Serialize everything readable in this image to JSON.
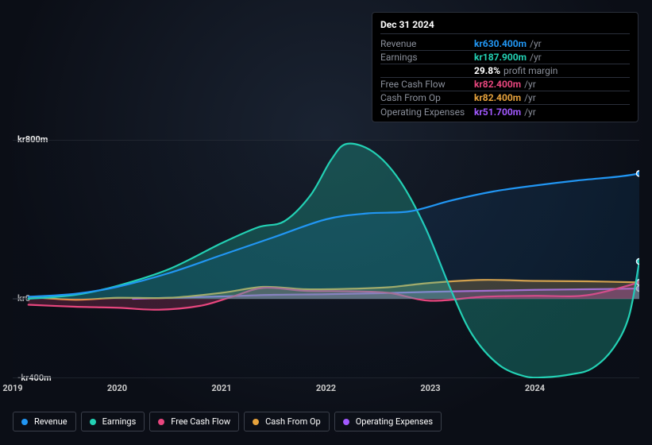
{
  "tooltip": {
    "date": "Dec 31 2024",
    "rows": [
      {
        "label": "Revenue",
        "value": "kr630.400m",
        "color": "#2196f3",
        "suffix": "/yr"
      },
      {
        "label": "Earnings",
        "value": "kr187.900m",
        "color": "#23d1b4",
        "suffix": "/yr"
      },
      {
        "label": "",
        "value": "29.8%",
        "color": "#ffffff",
        "suffix": "profit margin"
      },
      {
        "label": "Free Cash Flow",
        "value": "kr82.400m",
        "color": "#e8467e",
        "suffix": "/yr"
      },
      {
        "label": "Cash From Op",
        "value": "kr82.400m",
        "color": "#e6a23c",
        "suffix": "/yr"
      },
      {
        "label": "Operating Expenses",
        "value": "kr51.700m",
        "color": "#a259ff",
        "suffix": "/yr"
      }
    ]
  },
  "chart": {
    "type": "area",
    "background_color": "#0b0e16",
    "grid_color": "#30353f",
    "text_color": "#eeeeee",
    "ylim": [
      -400,
      800
    ],
    "y_ticks": [
      {
        "v": 800,
        "label": "kr800m"
      },
      {
        "v": 0,
        "label": "kr0"
      },
      {
        "v": -400,
        "label": "-kr400m"
      }
    ],
    "x_domain": [
      2019,
      2025
    ],
    "x_ticks": [
      {
        "v": 2019,
        "label": "2019"
      },
      {
        "v": 2020,
        "label": "2020"
      },
      {
        "v": 2021,
        "label": "2021"
      },
      {
        "v": 2022,
        "label": "2022"
      },
      {
        "v": 2023,
        "label": "2023"
      },
      {
        "v": 2024,
        "label": "2024"
      }
    ],
    "series": [
      {
        "name": "Operating Expenses",
        "color": "#a259ff",
        "fill_opacity": 0.25,
        "data": [
          [
            2020.15,
            0
          ],
          [
            2020.5,
            5
          ],
          [
            2021,
            12
          ],
          [
            2021.5,
            20
          ],
          [
            2022,
            23
          ],
          [
            2022.5,
            28
          ],
          [
            2023,
            35
          ],
          [
            2023.5,
            40
          ],
          [
            2024,
            45
          ],
          [
            2024.5,
            48
          ],
          [
            2025,
            51.7
          ]
        ]
      },
      {
        "name": "Cash From Op",
        "color": "#e6a23c",
        "fill_opacity": 0.25,
        "data": [
          [
            2019.15,
            10
          ],
          [
            2019.6,
            -5
          ],
          [
            2020,
            5
          ],
          [
            2020.5,
            5
          ],
          [
            2021,
            30
          ],
          [
            2021.4,
            60
          ],
          [
            2021.8,
            48
          ],
          [
            2022.2,
            50
          ],
          [
            2022.6,
            58
          ],
          [
            2023,
            80
          ],
          [
            2023.5,
            95
          ],
          [
            2024,
            90
          ],
          [
            2024.5,
            88
          ],
          [
            2025,
            82.4
          ]
        ]
      },
      {
        "name": "Free Cash Flow",
        "color": "#e8467e",
        "fill_opacity": 0.22,
        "data": [
          [
            2019.15,
            -30
          ],
          [
            2019.6,
            -40
          ],
          [
            2020,
            -45
          ],
          [
            2020.4,
            -55
          ],
          [
            2020.8,
            -35
          ],
          [
            2021.1,
            10
          ],
          [
            2021.4,
            55
          ],
          [
            2021.8,
            40
          ],
          [
            2022.2,
            38
          ],
          [
            2022.6,
            30
          ],
          [
            2023,
            -10
          ],
          [
            2023.5,
            10
          ],
          [
            2024,
            15
          ],
          [
            2024.5,
            18
          ],
          [
            2025,
            82.4
          ]
        ]
      },
      {
        "name": "Earnings",
        "color": "#23d1b4",
        "fill_opacity": 0.28,
        "data": [
          [
            2019.15,
            0
          ],
          [
            2019.6,
            20
          ],
          [
            2020,
            65
          ],
          [
            2020.5,
            150
          ],
          [
            2021,
            280
          ],
          [
            2021.35,
            360
          ],
          [
            2021.6,
            390
          ],
          [
            2021.85,
            520
          ],
          [
            2022.05,
            700
          ],
          [
            2022.2,
            780
          ],
          [
            2022.45,
            740
          ],
          [
            2022.7,
            600
          ],
          [
            2022.95,
            360
          ],
          [
            2023.2,
            40
          ],
          [
            2023.4,
            -180
          ],
          [
            2023.65,
            -330
          ],
          [
            2023.9,
            -390
          ],
          [
            2024.1,
            -395
          ],
          [
            2024.35,
            -380
          ],
          [
            2024.55,
            -350
          ],
          [
            2024.75,
            -250
          ],
          [
            2024.9,
            -90
          ],
          [
            2025,
            187.9
          ]
        ]
      },
      {
        "name": "Revenue",
        "color": "#2196f3",
        "fill_opacity": 0.1,
        "data": [
          [
            2019.15,
            10
          ],
          [
            2019.6,
            25
          ],
          [
            2020,
            60
          ],
          [
            2020.5,
            130
          ],
          [
            2021,
            220
          ],
          [
            2021.5,
            310
          ],
          [
            2022,
            400
          ],
          [
            2022.4,
            430
          ],
          [
            2022.8,
            440
          ],
          [
            2023.2,
            495
          ],
          [
            2023.6,
            540
          ],
          [
            2024,
            570
          ],
          [
            2024.4,
            595
          ],
          [
            2024.8,
            615
          ],
          [
            2025,
            630.4
          ]
        ]
      }
    ]
  },
  "legend": [
    {
      "label": "Revenue",
      "color": "#2196f3"
    },
    {
      "label": "Earnings",
      "color": "#23d1b4"
    },
    {
      "label": "Free Cash Flow",
      "color": "#e8467e"
    },
    {
      "label": "Cash From Op",
      "color": "#e6a23c"
    },
    {
      "label": "Operating Expenses",
      "color": "#a259ff"
    }
  ]
}
